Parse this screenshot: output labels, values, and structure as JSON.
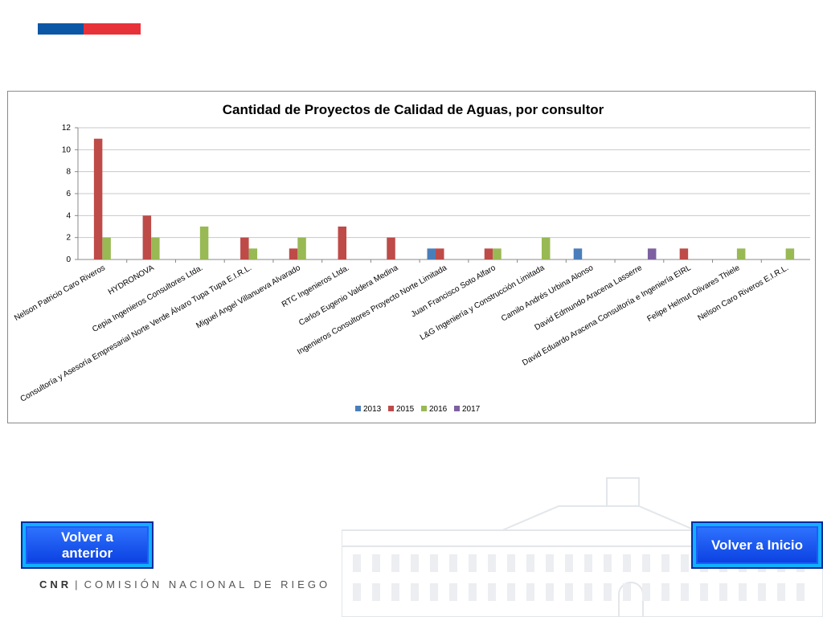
{
  "colors": {
    "flag_blue": "#0b57a6",
    "flag_red": "#e8323a",
    "series_2013": "#4a7ebb",
    "series_2015": "#be4b48",
    "series_2016": "#98b954",
    "series_2017": "#7d60a0",
    "gridline": "#c8c8c8"
  },
  "nav": {
    "prev_label": "Volver a anterior",
    "home_label": "Volver a Inicio"
  },
  "footer": {
    "brand": "CNR",
    "separator": "|",
    "org": "COMISIÓN NACIONAL DE RIEGO"
  },
  "chart_data": {
    "type": "bar",
    "title": "Cantidad de Proyectos de Calidad de Aguas, por consultor",
    "xlabel": "",
    "ylabel": "",
    "ylim": [
      0,
      12
    ],
    "yticks": [
      0,
      2,
      4,
      6,
      8,
      10,
      12
    ],
    "grid": true,
    "legend_position": "bottom",
    "categories": [
      "Nelson Patricio Caro Riveros",
      "HYDRONOVA",
      "Cepia Ingenieros Consultores Ltda.",
      "Consultoría y Asesoría Empresarial Norte Verde Álvaro Tupa Tupa E.I.R.L.",
      "Miguel Angel Villanueva Alvarado",
      "RTC Ingenieros Ltda.",
      "Carlos Eugenio Valdera Medina",
      "Ingenieros Consultores Proyecto Norte Limitada",
      "Juan Francisco Soto Alfaro",
      "L&G Ingeniería y Construcción Limitada",
      "Camilo Andrés Urbina Alonso",
      "David Edmundo Aracena  Lasserre",
      "David Eduardo Aracena Consultoría e Ingeniería EIRL",
      "Felipe Helmut Olivares Thiele",
      "Nelson Caro Riveros E.I.R.L."
    ],
    "series": [
      {
        "name": "2013",
        "values": [
          0,
          0,
          0,
          0,
          0,
          0,
          0,
          1,
          0,
          0,
          1,
          0,
          0,
          0,
          0
        ]
      },
      {
        "name": "2015",
        "values": [
          11,
          4,
          0,
          2,
          1,
          3,
          2,
          1,
          1,
          0,
          0,
          0,
          1,
          0,
          0
        ]
      },
      {
        "name": "2016",
        "values": [
          2,
          2,
          3,
          1,
          2,
          0,
          0,
          0,
          1,
          2,
          0,
          0,
          0,
          1,
          1
        ]
      },
      {
        "name": "2017",
        "values": [
          0,
          0,
          0,
          0,
          0,
          0,
          0,
          0,
          0,
          0,
          0,
          1,
          0,
          0,
          0
        ]
      }
    ]
  }
}
